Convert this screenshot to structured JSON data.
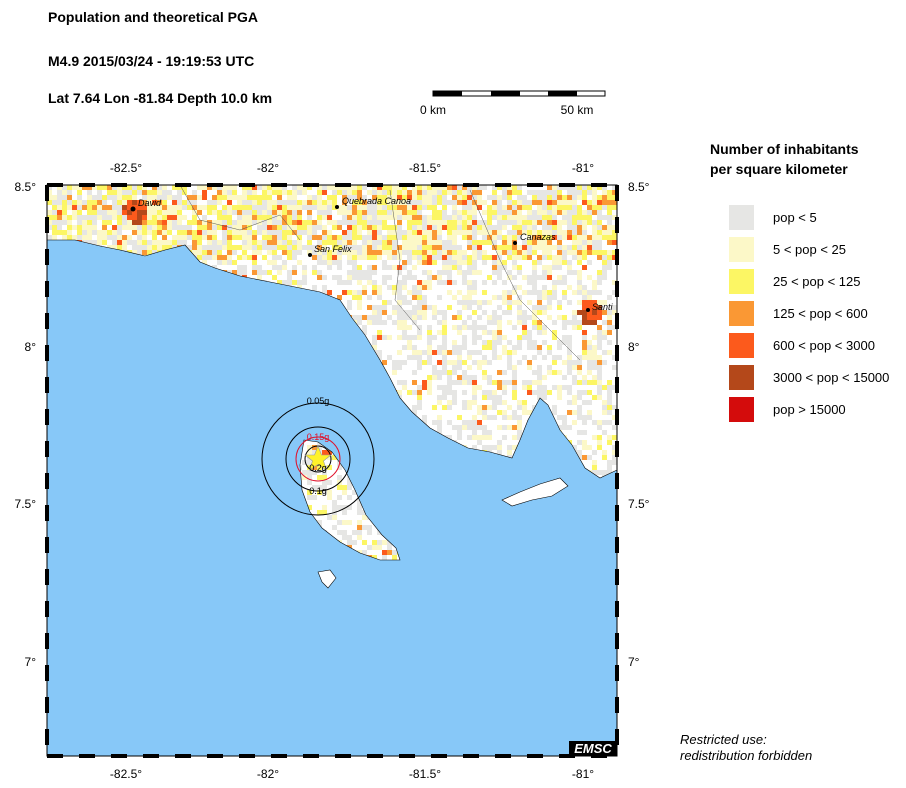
{
  "header": {
    "title": "Population and theoretical PGA",
    "event": "M4.9  2015/03/24 - 19:19:53 UTC",
    "location": "Lat  7.64    Lon -81.84     Depth  10.0 km"
  },
  "scale_bar": {
    "start": "0 km",
    "end": "50 km"
  },
  "map": {
    "lon_labels": [
      "-82.5°",
      "-82°",
      "-81.5°",
      "-81°"
    ],
    "lat_labels": [
      "8.5°",
      "8°",
      "7.5°",
      "7°"
    ],
    "cities": [
      "David",
      "Quebrada Canoa",
      "San Felix",
      "Canazas",
      "Santi"
    ],
    "pga_labels": [
      "0.05g",
      "0.15g",
      "0.2g",
      "0.1g"
    ],
    "credit": "EMSC"
  },
  "legend": {
    "title": [
      "Number of inhabitants",
      "per square kilometer"
    ],
    "items": [
      {
        "label": "pop < 5",
        "color": "#e6e6e4"
      },
      {
        "label": "5 < pop < 25",
        "color": "#fcf8c8"
      },
      {
        "label": "25 < pop < 125",
        "color": "#fcf664"
      },
      {
        "label": "125 < pop < 600",
        "color": "#fa9834"
      },
      {
        "label": "600 < pop < 3000",
        "color": "#fc5a1c"
      },
      {
        "label": "3000 < pop < 15000",
        "color": "#b4481a"
      },
      {
        "label": "pop > 15000",
        "color": "#d40c0c"
      }
    ]
  },
  "notice": [
    "Restricted use:",
    "redistribution forbidden"
  ]
}
